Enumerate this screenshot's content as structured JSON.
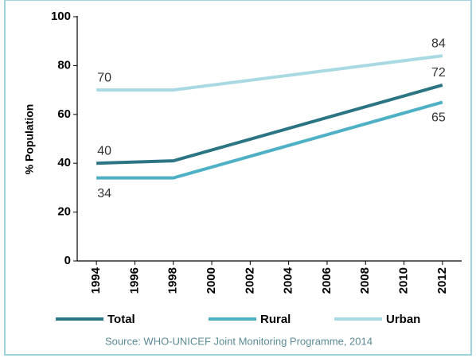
{
  "chart_data": {
    "type": "line",
    "ylabel": "% Population",
    "x": [
      1994,
      1998,
      2012
    ],
    "series": [
      {
        "name": "Total",
        "color": "#2b7483",
        "values": [
          40,
          41,
          72
        ]
      },
      {
        "name": "Rural",
        "color": "#4db0c4",
        "values": [
          34,
          34,
          65
        ]
      },
      {
        "name": "Urban",
        "color": "#a9d9e3",
        "values": [
          70,
          70,
          84
        ]
      }
    ],
    "xlim": [
      1993,
      2013
    ],
    "xticks": [
      1994,
      1996,
      1998,
      2000,
      2002,
      2004,
      2006,
      2008,
      2010,
      2012
    ],
    "ylim": [
      0,
      100
    ],
    "yticks": [
      0,
      20,
      40,
      60,
      80,
      100
    ],
    "source": "Source:  WHO-UNICEF Joint Monitoring Programme, 2014"
  }
}
